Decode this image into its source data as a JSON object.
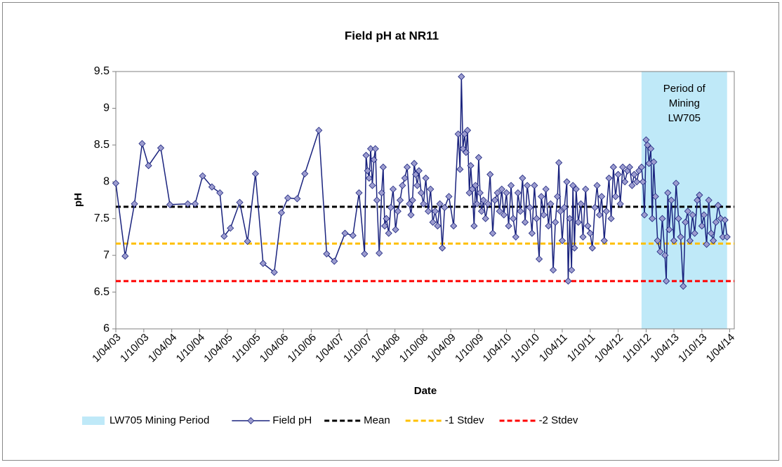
{
  "chart_data": {
    "type": "line",
    "title": "Field pH at NR11",
    "x_label": "Date",
    "y_label": "pH",
    "xlim": [
      "2003-04-01",
      "2014-05-01"
    ],
    "xticks": [
      {
        "value": "2003-04-01",
        "label": "1/04/03"
      },
      {
        "value": "2003-10-01",
        "label": "1/10/03"
      },
      {
        "value": "2004-04-01",
        "label": "1/04/04"
      },
      {
        "value": "2004-10-01",
        "label": "1/10/04"
      },
      {
        "value": "2005-04-01",
        "label": "1/04/05"
      },
      {
        "value": "2005-10-01",
        "label": "1/10/05"
      },
      {
        "value": "2006-04-01",
        "label": "1/04/06"
      },
      {
        "value": "2006-10-01",
        "label": "1/10/06"
      },
      {
        "value": "2007-04-01",
        "label": "1/04/07"
      },
      {
        "value": "2007-10-01",
        "label": "1/10/07"
      },
      {
        "value": "2008-04-01",
        "label": "1/04/08"
      },
      {
        "value": "2008-10-01",
        "label": "1/10/08"
      },
      {
        "value": "2009-04-01",
        "label": "1/04/09"
      },
      {
        "value": "2009-10-01",
        "label": "1/10/09"
      },
      {
        "value": "2010-04-01",
        "label": "1/04/10"
      },
      {
        "value": "2010-10-01",
        "label": "1/10/10"
      },
      {
        "value": "2011-04-01",
        "label": "1/04/11"
      },
      {
        "value": "2011-10-01",
        "label": "1/10/11"
      },
      {
        "value": "2012-04-01",
        "label": "1/04/12"
      },
      {
        "value": "2012-10-01",
        "label": "1/10/12"
      },
      {
        "value": "2013-04-01",
        "label": "1/04/13"
      },
      {
        "value": "2013-10-01",
        "label": "1/10/13"
      },
      {
        "value": "2014-04-01",
        "label": "1/04/14"
      }
    ],
    "ylim": [
      6,
      9.5
    ],
    "yticks": [
      6,
      6.5,
      7,
      7.5,
      8,
      8.5,
      9,
      9.5
    ],
    "grid": false,
    "shaded_period": {
      "name": "LW705 Mining Period",
      "start": "2012-09-01",
      "end": "2014-03-15",
      "color": "#bfe9f8",
      "annotation": [
        "Period of",
        "Mining",
        "LW705"
      ]
    },
    "reference_lines": [
      {
        "name": "Mean",
        "value": 7.66,
        "color": "#000000"
      },
      {
        "name": "-1 Stdev",
        "value": 7.16,
        "color": "#ffc000"
      },
      {
        "name": "-2 Stdev",
        "value": 6.65,
        "color": "#ff0000"
      }
    ],
    "x": [
      "2003-04-01",
      "2003-06-01",
      "2003-08-01",
      "2003-09-20",
      "2003-11-01",
      "2004-01-20",
      "2004-03-20",
      "2004-07-15",
      "2004-09-01",
      "2004-10-20",
      "2004-12-20",
      "2005-02-10",
      "2005-03-10",
      "2005-04-20",
      "2005-06-20",
      "2005-08-10",
      "2005-10-01",
      "2005-11-20",
      "2006-02-01",
      "2006-03-20",
      "2006-05-01",
      "2006-07-01",
      "2006-08-20",
      "2006-11-20",
      "2007-01-10",
      "2007-03-01",
      "2007-05-10",
      "2007-07-01",
      "2007-08-10",
      "2007-09-15",
      "2007-09-25",
      "2007-10-05",
      "2007-10-15",
      "2007-10-25",
      "2007-11-05",
      "2007-11-15",
      "2007-11-25",
      "2007-12-05",
      "2007-12-20",
      "2008-01-05",
      "2008-01-15",
      "2008-01-25",
      "2008-02-05",
      "2008-02-20",
      "2008-03-05",
      "2008-03-20",
      "2008-04-05",
      "2008-04-20",
      "2008-05-05",
      "2008-05-20",
      "2008-06-05",
      "2008-06-20",
      "2008-07-05",
      "2008-07-15",
      "2008-07-25",
      "2008-08-05",
      "2008-08-15",
      "2008-08-25",
      "2008-09-05",
      "2008-09-20",
      "2008-10-05",
      "2008-10-20",
      "2008-11-05",
      "2008-11-20",
      "2008-12-05",
      "2008-12-20",
      "2009-01-05",
      "2009-01-20",
      "2009-02-05",
      "2009-02-20",
      "2009-03-20",
      "2009-04-20",
      "2009-05-20",
      "2009-06-01",
      "2009-06-10",
      "2009-06-20",
      "2009-07-01",
      "2009-07-10",
      "2009-07-20",
      "2009-08-01",
      "2009-08-10",
      "2009-08-20",
      "2009-09-01",
      "2009-09-10",
      "2009-09-20",
      "2009-10-01",
      "2009-10-10",
      "2009-10-20",
      "2009-11-01",
      "2009-11-15",
      "2009-12-01",
      "2009-12-15",
      "2010-01-01",
      "2010-01-15",
      "2010-02-01",
      "2010-02-15",
      "2010-03-01",
      "2010-03-15",
      "2010-04-01",
      "2010-04-15",
      "2010-05-01",
      "2010-05-15",
      "2010-06-01",
      "2010-06-15",
      "2010-07-01",
      "2010-07-15",
      "2010-08-01",
      "2010-08-15",
      "2010-09-01",
      "2010-09-15",
      "2010-10-01",
      "2010-10-15",
      "2010-11-01",
      "2010-11-15",
      "2010-12-01",
      "2010-12-15",
      "2011-01-01",
      "2011-01-15",
      "2011-02-01",
      "2011-02-15",
      "2011-03-01",
      "2011-03-10",
      "2011-03-20",
      "2011-04-01",
      "2011-04-15",
      "2011-05-01",
      "2011-05-10",
      "2011-05-20",
      "2011-06-01",
      "2011-06-10",
      "2011-06-20",
      "2011-07-01",
      "2011-07-15",
      "2011-08-01",
      "2011-08-15",
      "2011-09-01",
      "2011-09-15",
      "2011-10-01",
      "2011-10-15",
      "2011-11-01",
      "2011-11-15",
      "2011-12-01",
      "2011-12-15",
      "2012-01-01",
      "2012-01-15",
      "2012-02-01",
      "2012-02-15",
      "2012-03-01",
      "2012-03-15",
      "2012-04-01",
      "2012-04-15",
      "2012-05-01",
      "2012-05-15",
      "2012-06-01",
      "2012-06-15",
      "2012-07-01",
      "2012-07-15",
      "2012-08-01",
      "2012-08-15",
      "2012-09-01",
      "2012-09-10",
      "2012-09-20",
      "2012-10-01",
      "2012-10-10",
      "2012-10-20",
      "2012-11-01",
      "2012-11-10",
      "2012-11-20",
      "2012-12-01",
      "2012-12-15",
      "2013-01-01",
      "2013-01-15",
      "2013-02-01",
      "2013-02-10",
      "2013-02-20",
      "2013-03-01",
      "2013-03-15",
      "2013-04-01",
      "2013-04-15",
      "2013-05-01",
      "2013-05-15",
      "2013-06-01",
      "2013-06-15",
      "2013-07-01",
      "2013-07-15",
      "2013-08-01",
      "2013-08-15",
      "2013-09-01",
      "2013-09-15",
      "2013-10-01",
      "2013-10-15",
      "2013-11-01",
      "2013-11-15",
      "2013-12-01",
      "2013-12-15",
      "2014-01-01",
      "2014-01-15",
      "2014-02-01",
      "2014-02-15",
      "2014-03-01",
      "2014-03-15"
    ],
    "series": [
      {
        "name": "Field pH",
        "color": "#1a237e",
        "marker_color": "#9c9ccf",
        "values": [
          7.98,
          6.99,
          7.7,
          8.52,
          8.22,
          8.46,
          7.69,
          7.7,
          7.7,
          8.08,
          7.93,
          7.85,
          7.26,
          7.37,
          7.72,
          7.19,
          8.11,
          6.89,
          6.77,
          7.58,
          7.78,
          7.77,
          8.11,
          8.7,
          7.02,
          6.92,
          7.3,
          7.27,
          7.85,
          7.02,
          8.36,
          8.15,
          8.05,
          8.45,
          7.95,
          8.3,
          8.45,
          7.75,
          7.03,
          7.85,
          8.2,
          7.4,
          7.5,
          7.3,
          7.65,
          7.9,
          7.35,
          7.6,
          7.75,
          7.95,
          8.05,
          8.2,
          7.7,
          7.55,
          7.75,
          8.25,
          8.1,
          7.95,
          8.15,
          7.85,
          7.7,
          8.05,
          7.6,
          7.9,
          7.45,
          7.6,
          7.4,
          7.7,
          7.1,
          7.65,
          7.8,
          7.4,
          8.65,
          8.17,
          9.43,
          8.45,
          8.65,
          8.4,
          8.7,
          7.85,
          8.22,
          7.9,
          7.4,
          7.95,
          7.7,
          8.33,
          7.85,
          7.6,
          7.75,
          7.5,
          7.7,
          8.1,
          7.3,
          7.75,
          7.85,
          7.6,
          7.9,
          7.55,
          7.85,
          7.4,
          7.95,
          7.5,
          7.25,
          7.85,
          7.6,
          8.05,
          7.45,
          7.95,
          7.65,
          7.3,
          7.95,
          7.5,
          6.95,
          7.8,
          7.55,
          7.9,
          7.4,
          7.7,
          6.8,
          7.45,
          7.8,
          8.26,
          7.6,
          7.2,
          7.65,
          8.0,
          6.65,
          7.5,
          6.8,
          7.95,
          7.1,
          7.9,
          7.45,
          7.7,
          7.25,
          7.9,
          7.4,
          7.3,
          7.1,
          7.65,
          7.95,
          7.55,
          7.8,
          7.2,
          7.6,
          8.05,
          7.5,
          8.2,
          7.8,
          8.1,
          7.7,
          8.2,
          8.0,
          8.15,
          8.2,
          7.95,
          8.1,
          8.0,
          8.15,
          8.2,
          8.0,
          7.55,
          8.57,
          8.5,
          8.25,
          8.45,
          7.5,
          8.27,
          7.8,
          7.2,
          7.05,
          7.5,
          7.0,
          6.65,
          7.85,
          7.35,
          7.75,
          7.2,
          7.98,
          7.5,
          7.25,
          6.58,
          7.45,
          7.6,
          7.2,
          7.55,
          7.3,
          7.75,
          7.82,
          7.4,
          7.55,
          7.15,
          7.75,
          7.3,
          7.2,
          7.45,
          7.68,
          7.5,
          7.25,
          7.48,
          7.25
        ]
      }
    ]
  }
}
